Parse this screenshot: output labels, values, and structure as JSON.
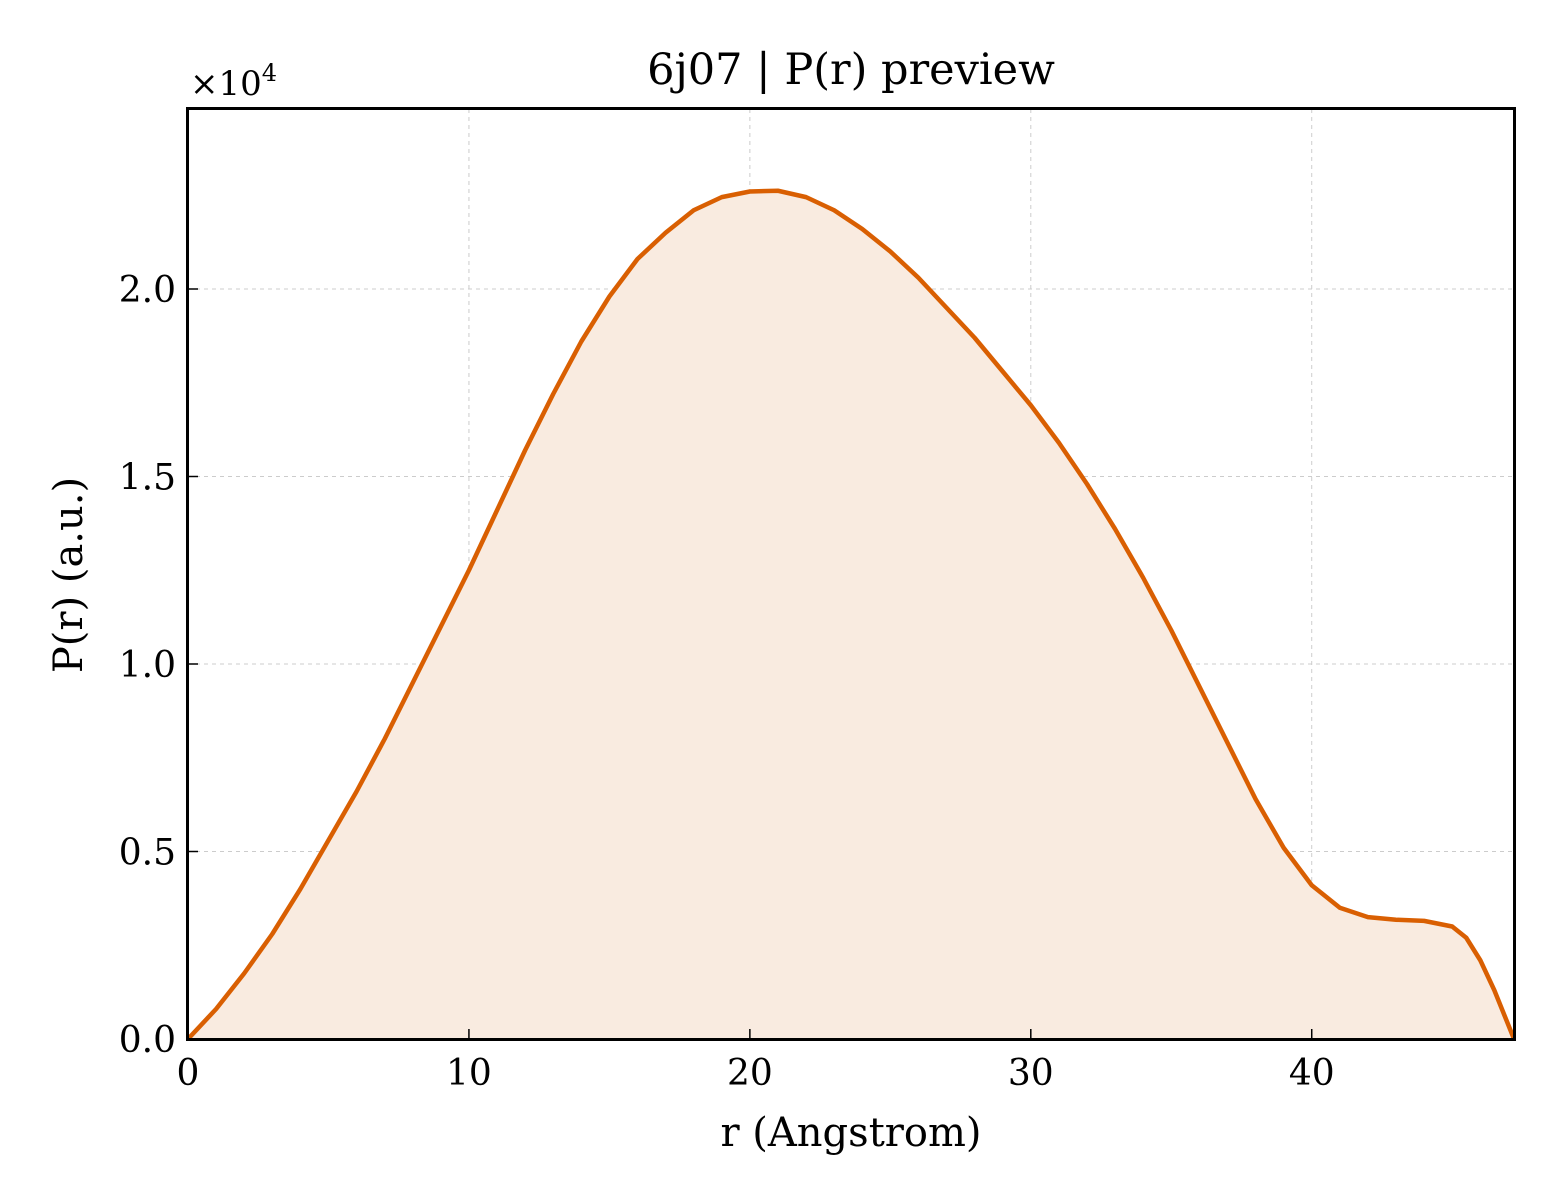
{
  "chart_data": {
    "type": "area",
    "title": "6j07 | P(r) preview",
    "xlabel": "r (Angstrom)",
    "ylabel": "P(r) (a.u.)",
    "y_multiplier": "×10",
    "y_multiplier_exp": "4",
    "xlim": [
      0,
      47.2
    ],
    "ylim": [
      0,
      2.48
    ],
    "xticks": [
      0,
      10,
      20,
      30,
      40
    ],
    "xtick_labels": [
      "0",
      "10",
      "20",
      "30",
      "40"
    ],
    "yticks": [
      0,
      0.5,
      1.0,
      1.5,
      2.0
    ],
    "ytick_labels": [
      "0.0",
      "0.5",
      "1.0",
      "1.5",
      "2.0"
    ],
    "grid": true,
    "line_color": "#d95f02",
    "fill_color": "#f9ebe0",
    "series": [
      {
        "x": [
          0,
          1,
          2,
          3,
          4,
          5,
          6,
          7,
          8,
          9,
          10,
          11,
          12,
          13,
          14,
          15,
          16,
          17,
          18,
          19,
          20,
          21,
          22,
          23,
          24,
          25,
          26,
          27,
          28,
          29,
          30,
          31,
          32,
          33,
          34,
          35,
          36,
          37,
          38,
          39,
          40,
          41,
          42,
          43,
          44,
          45,
          45.5,
          46,
          46.5,
          47.2
        ],
        "y": [
          0.0,
          0.08,
          0.175,
          0.28,
          0.4,
          0.53,
          0.66,
          0.8,
          0.95,
          1.1,
          1.25,
          1.41,
          1.57,
          1.72,
          1.86,
          1.98,
          2.08,
          2.15,
          2.21,
          2.245,
          2.26,
          2.262,
          2.245,
          2.21,
          2.16,
          2.1,
          2.03,
          1.95,
          1.87,
          1.78,
          1.69,
          1.59,
          1.48,
          1.36,
          1.23,
          1.09,
          0.94,
          0.79,
          0.64,
          0.51,
          0.41,
          0.35,
          0.325,
          0.318,
          0.315,
          0.3,
          0.27,
          0.21,
          0.13,
          0.0
        ]
      }
    ]
  }
}
